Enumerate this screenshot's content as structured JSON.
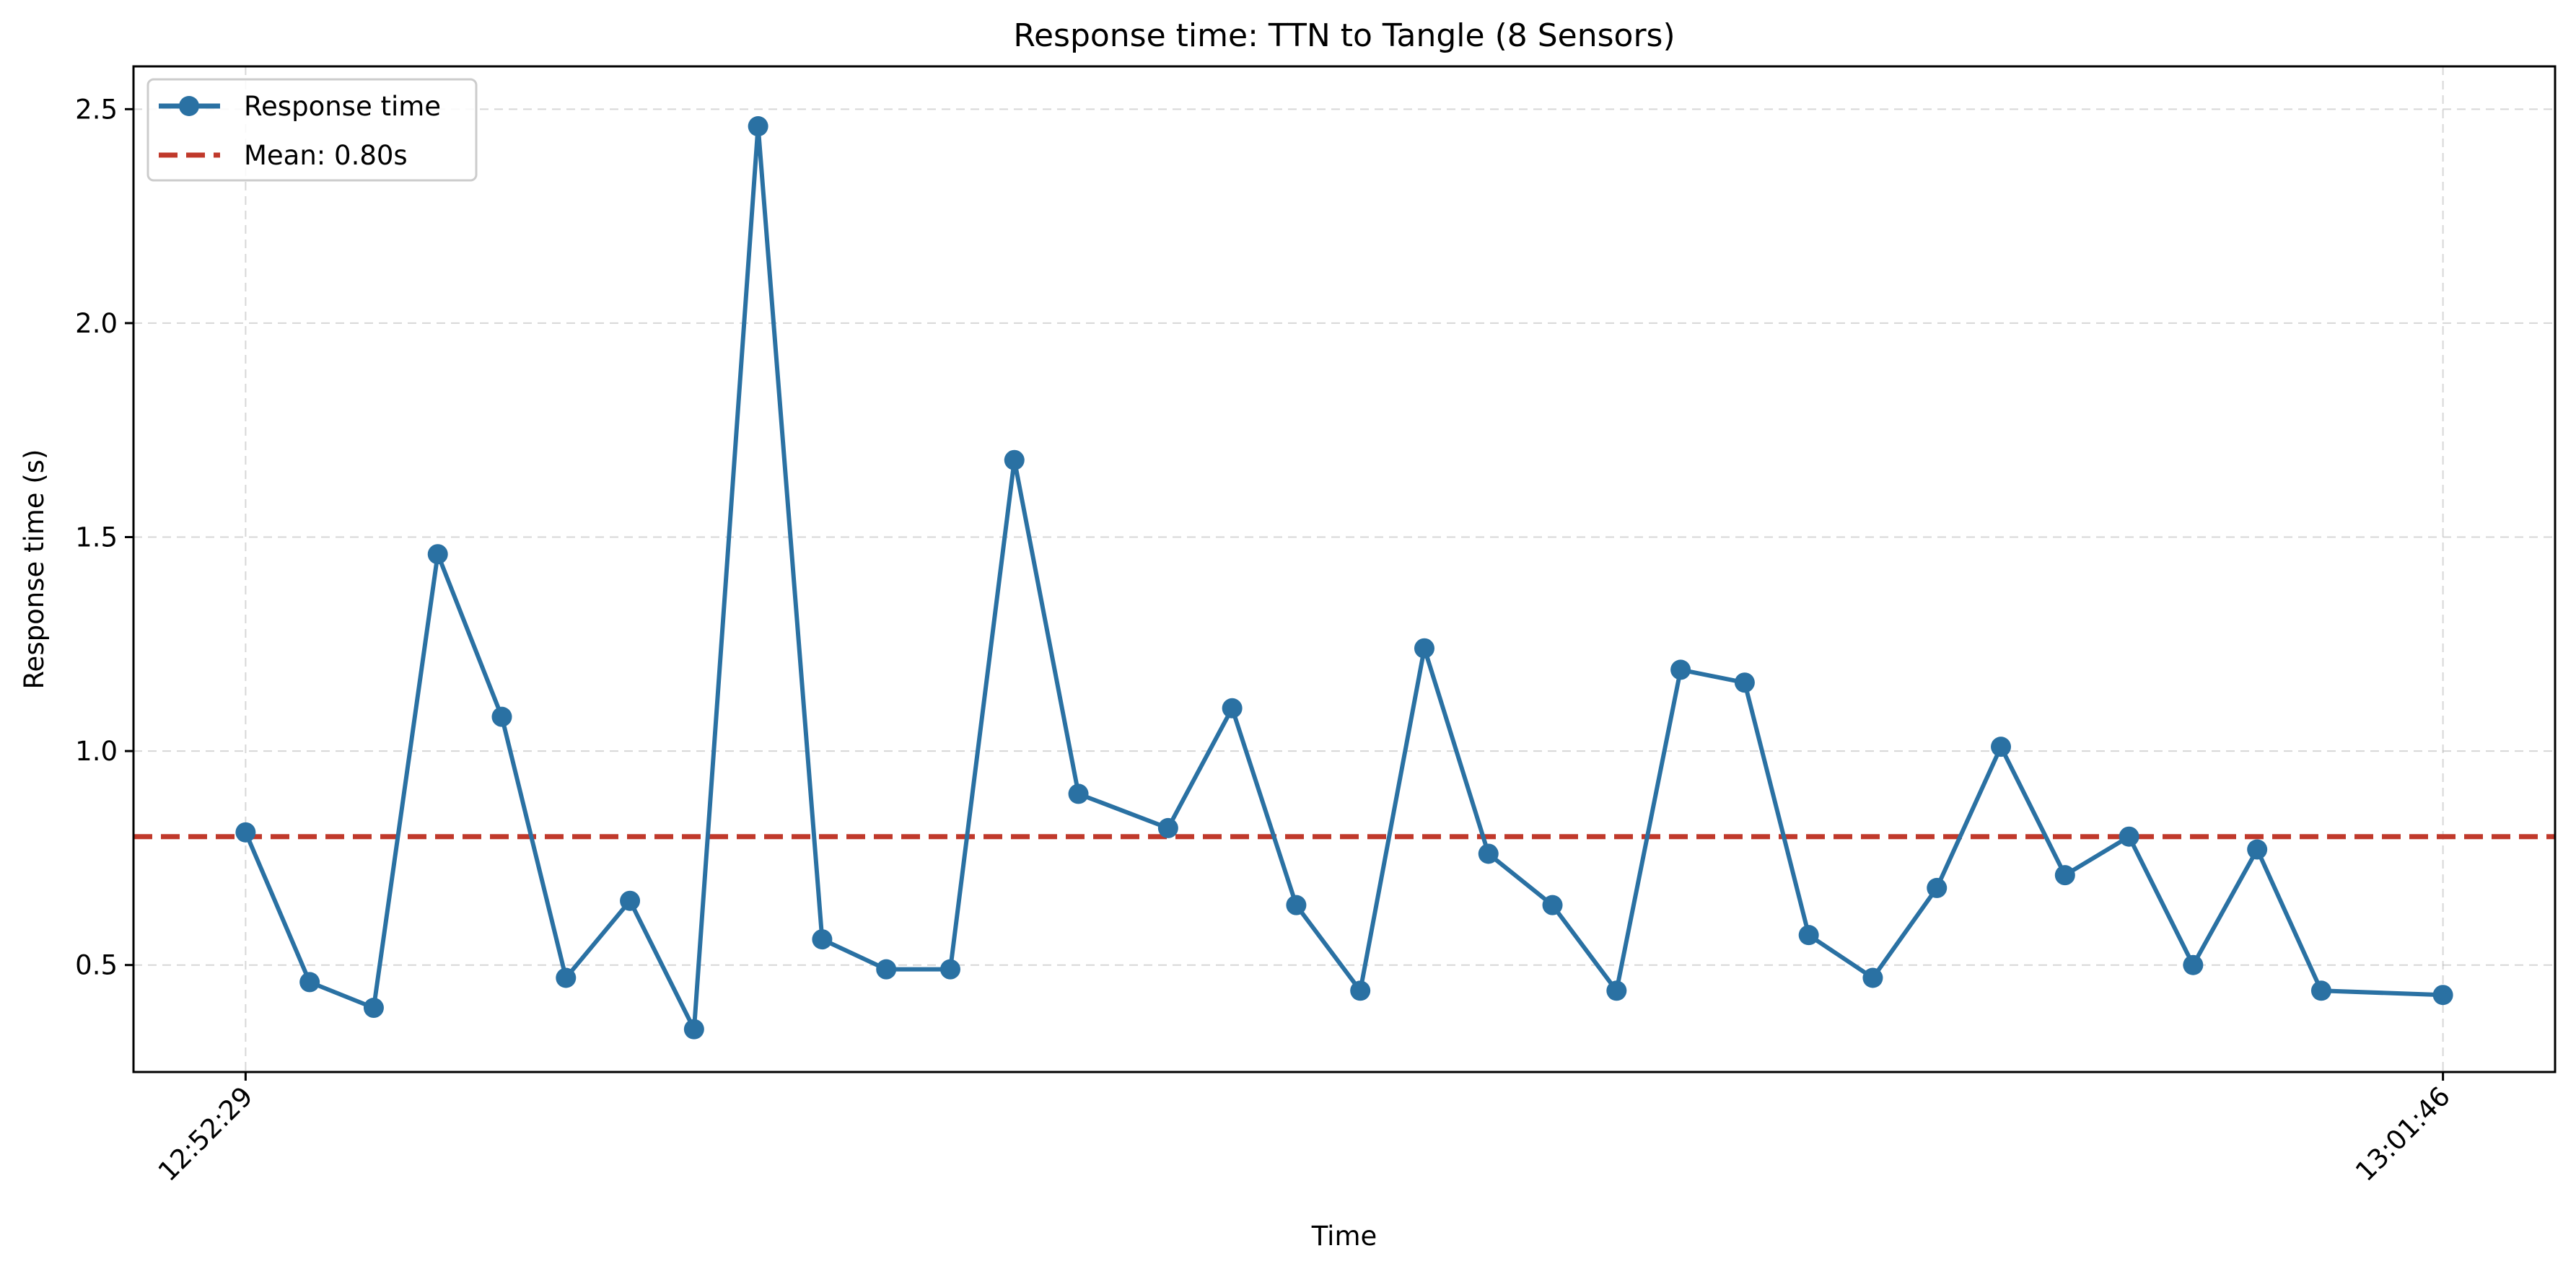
{
  "chart_data": {
    "type": "line",
    "title": "Response time: TTN to Tangle (8 Sensors)",
    "xlabel": "Time",
    "ylabel": "Response time (s)",
    "ylim": [
      0.25,
      2.6
    ],
    "xlim": [
      -1.75,
      36.05
    ],
    "yticks": [
      "0.5",
      "1.0",
      "1.5",
      "2.0",
      "2.5"
    ],
    "ytick_values": [
      0.5,
      1.0,
      1.5,
      2.0,
      2.5
    ],
    "xticks": [
      {
        "index": 0,
        "label": "12:52:29"
      },
      {
        "index": 34.3,
        "label": "13:01:46"
      }
    ],
    "grid": true,
    "legend_position": "top-left",
    "series": [
      {
        "name": "Response time",
        "color": "#2a71a3",
        "marker": "circle",
        "x": [
          0,
          1,
          2,
          3,
          4,
          5,
          6,
          7,
          8,
          9,
          10,
          11,
          12,
          13,
          14.4,
          15.4,
          16.4,
          17.4,
          18.4,
          19.4,
          20.4,
          21.4,
          22.4,
          23.4,
          24.4,
          25.4,
          26.4,
          27.4,
          28.4,
          29.4,
          30.4,
          31.4,
          32.4,
          34.3
        ],
        "values": [
          0.81,
          0.46,
          0.4,
          1.46,
          1.08,
          0.47,
          0.65,
          0.35,
          2.46,
          0.56,
          0.49,
          0.49,
          1.68,
          0.9,
          0.82,
          1.1,
          0.64,
          0.44,
          1.24,
          0.76,
          0.64,
          0.44,
          1.19,
          1.16,
          0.57,
          0.47,
          0.68,
          1.01,
          0.71,
          0.8,
          0.5,
          0.77,
          0.44,
          0.43
        ]
      }
    ],
    "mean": {
      "name": "Mean: 0.80s",
      "value": 0.8,
      "color": "#c0392b",
      "style": "dashed"
    }
  }
}
